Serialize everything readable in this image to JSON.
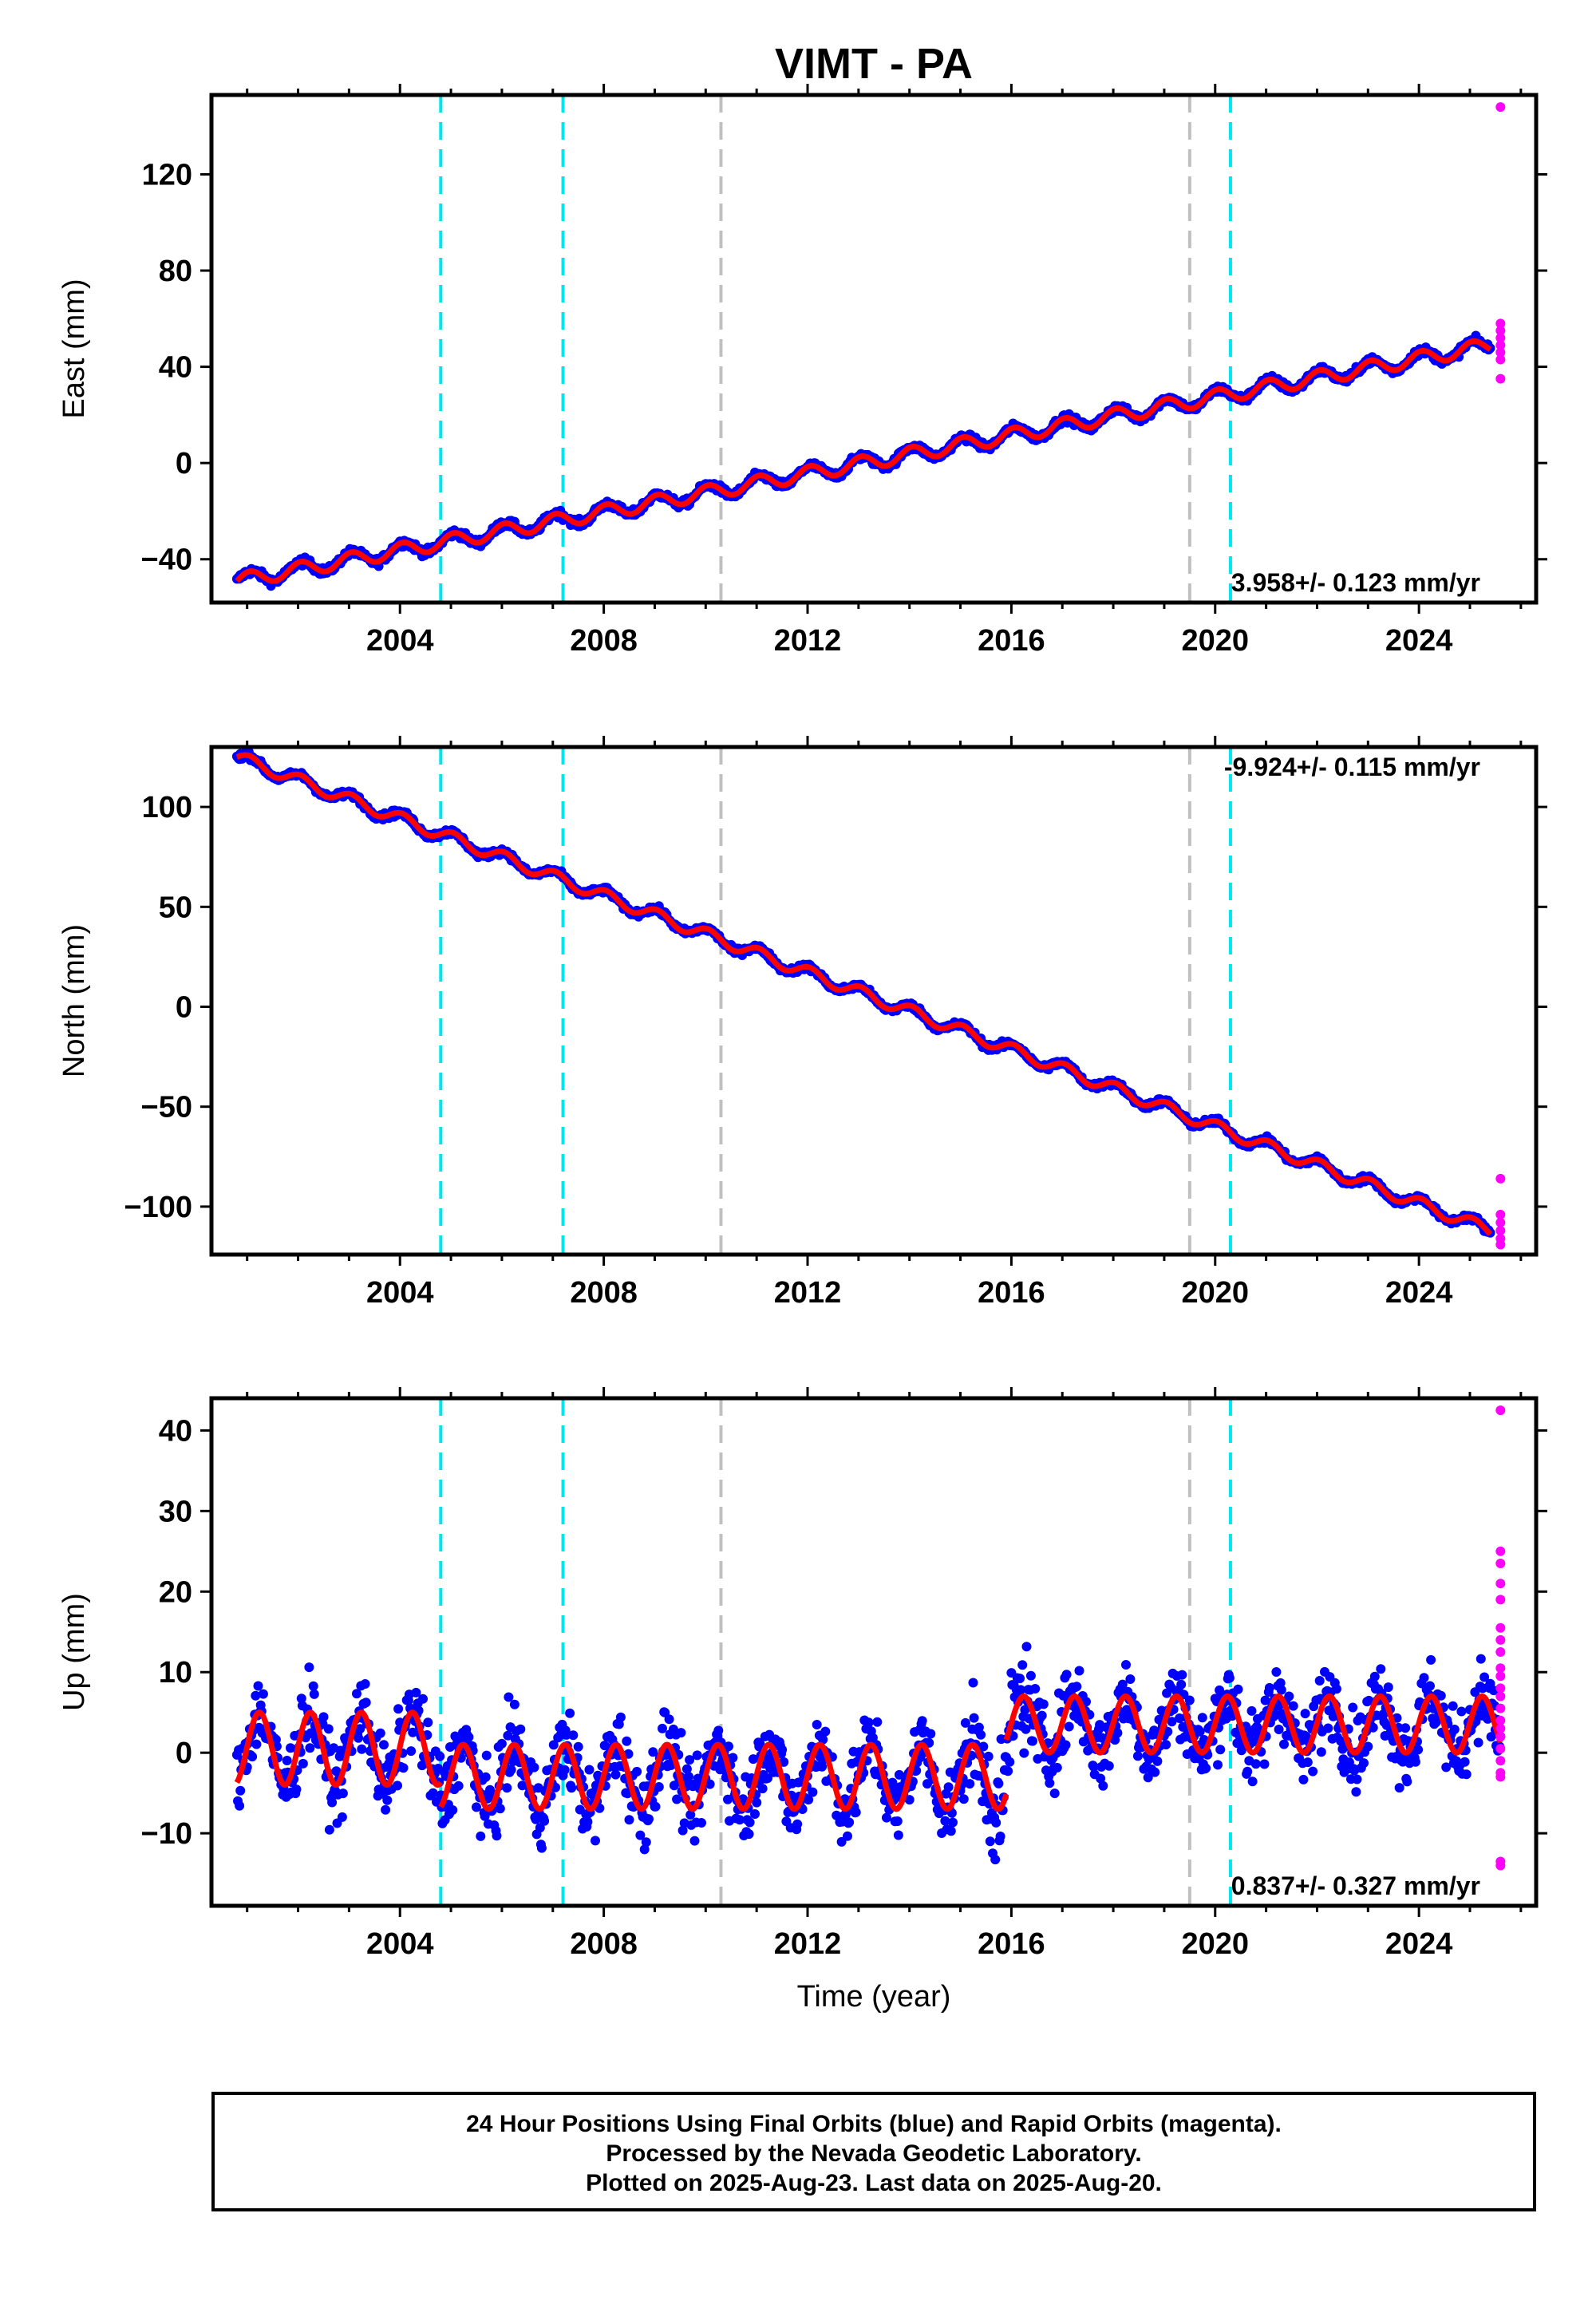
{
  "title": "VIMT - PA",
  "xlabel": "Time (year)",
  "caption": [
    "24 Hour Positions Using Final Orbits (blue) and Rapid Orbits (magenta).",
    "Processed by the Nevada Geodetic Laboratory.",
    "Plotted on 2025-Aug-23. Last data on 2025-Aug-20."
  ],
  "colors": {
    "final_orbits": "#0000ff",
    "rapid_orbits": "#ff00ff",
    "model_fit": "#ff0000",
    "event_cyan": "#00e5ee",
    "event_gray": "#c0c0c0"
  },
  "chart_data": [
    {
      "type": "scatter",
      "component": "East",
      "ylabel": "East (mm)",
      "xlim": [
        2000.3,
        2026.3
      ],
      "ylim": [
        -58,
        153
      ],
      "yticks": [
        -40,
        0,
        40,
        80,
        120
      ],
      "xticks": [
        2004,
        2008,
        2012,
        2016,
        2020,
        2024
      ],
      "rate_text": "3.958+/- 0.123 mm/yr",
      "rate_position": "bottom-right",
      "trend": {
        "start": [
          2000.8,
          -49
        ],
        "end": [
          2025.4,
          49
        ]
      },
      "seasonal_amplitude": 3,
      "scatter_noise": 2.5,
      "rapid_points": [
        148,
        58,
        55,
        52,
        49,
        46,
        43,
        35
      ],
      "vertical_lines": {
        "cyan": [
          2004.8,
          2007.2,
          2020.3
        ],
        "gray": [
          2010.3,
          2019.5
        ]
      }
    },
    {
      "type": "scatter",
      "component": "North",
      "ylabel": "North (mm)",
      "xlim": [
        2000.3,
        2026.3
      ],
      "ylim": [
        -124,
        130
      ],
      "yticks": [
        -100,
        -50,
        0,
        50,
        100
      ],
      "xticks": [
        2004,
        2008,
        2012,
        2016,
        2020,
        2024
      ],
      "rate_text": "-9.924+/- 0.115 mm/yr",
      "rate_position": "top-right",
      "trend": {
        "start": [
          2000.8,
          125
        ],
        "end": [
          2025.4,
          -112
        ]
      },
      "seasonal_amplitude": 3,
      "scatter_noise": 2.5,
      "rapid_points": [
        -86,
        -104,
        -108,
        -112,
        -116,
        -119
      ],
      "vertical_lines": {
        "cyan": [
          2004.8,
          2007.2,
          2020.3
        ],
        "gray": [
          2010.3,
          2019.5
        ]
      }
    },
    {
      "type": "scatter",
      "component": "Up",
      "ylabel": "Up (mm)",
      "xlim": [
        2000.3,
        2026.3
      ],
      "ylim": [
        -19,
        44
      ],
      "yticks": [
        -10,
        0,
        10,
        20,
        30,
        40
      ],
      "xticks": [
        2004,
        2008,
        2012,
        2016,
        2020,
        2024
      ],
      "rate_text": "0.837+/- 0.327 mm/yr",
      "rate_position": "bottom-right",
      "fit_segments": [
        {
          "from": 2000.8,
          "to": 2004.8,
          "offset": 0.5,
          "amplitude": 4.5
        },
        {
          "from": 2004.8,
          "to": 2015.9,
          "offset": -3.0,
          "amplitude": 4.0
        },
        {
          "from": 2015.9,
          "to": 2025.6,
          "offset": 3.5,
          "amplitude": 3.5
        }
      ],
      "scatter_noise": 4.2,
      "rapid_points": [
        42.5,
        25,
        23.5,
        21,
        19,
        15.5,
        14,
        12.5,
        10.5,
        9.5,
        8,
        7,
        5.5,
        4,
        3,
        2,
        0.5,
        -1,
        -2.5,
        -3,
        -13.5,
        -14
      ],
      "vertical_lines": {
        "cyan": [
          2004.8,
          2007.2,
          2020.3
        ],
        "gray": [
          2010.3,
          2019.5
        ]
      }
    }
  ]
}
